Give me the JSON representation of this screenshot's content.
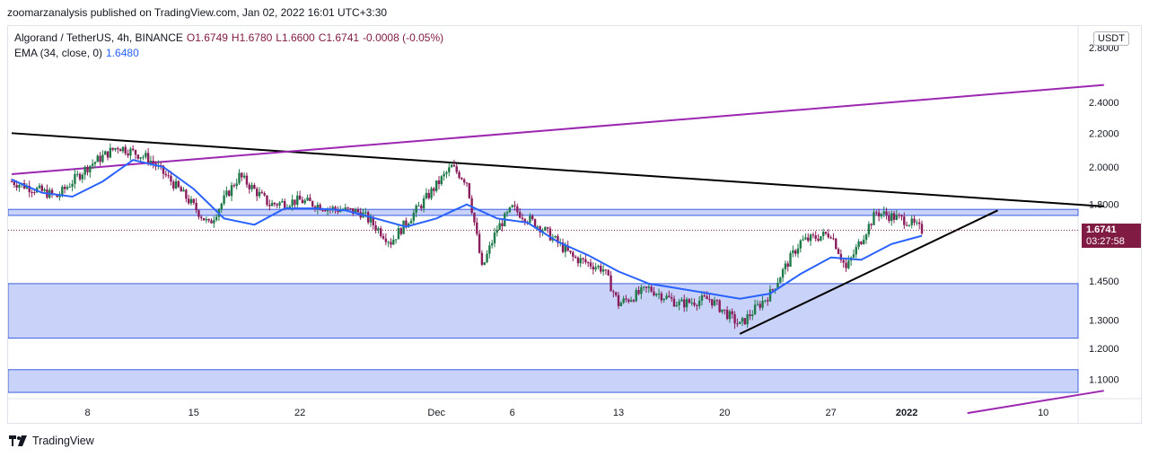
{
  "header": {
    "published": "zoomarzanalysis published on TradingView.com, Jan 02, 2022 16:01 UTC+3:30"
  },
  "legend": {
    "symbol": "Algorand / TetherUS, 4h, BINANCE",
    "open": "O1.6749",
    "high": "H1.6780",
    "low": "L1.6600",
    "close": "C1.6741",
    "change": "-0.0008 (-0.05%)",
    "ema_label": "EMA (34, close, 0)",
    "ema_value": "1.6480"
  },
  "price_axis": {
    "currency": "USDT",
    "ticks": [
      "2.8000",
      "2.4000",
      "2.2000",
      "2.0000",
      "1.8000",
      "1.4500",
      "1.3000",
      "1.2000",
      "1.1000"
    ]
  },
  "last_price": {
    "price": "1.6741",
    "countdown": "03:27:58",
    "color": "#801c44"
  },
  "time_axis": {
    "ticks": [
      "8",
      "15",
      "22",
      "Dec",
      "6",
      "13",
      "20",
      "27",
      "2022",
      "10"
    ]
  },
  "footer": {
    "brand": "TradingView"
  },
  "colors": {
    "bull": "#1f7a4a",
    "bear": "#8b1c5c",
    "ema": "#2962ff",
    "zone": "#bfcaf7",
    "zone_border": "#3c5ee0",
    "purple": "#9c27b0",
    "trendline": "#000000"
  },
  "chart_data": {
    "type": "candlestick",
    "symbol": "Algorand / TetherUS",
    "interval": "4h",
    "exchange": "BINANCE",
    "y_scale": "log",
    "ylim": [
      1.04,
      2.95
    ],
    "x_range": [
      "Nov 3 2021",
      "Jan 14 2022"
    ],
    "legend_position": "top-left",
    "series": [
      {
        "name": "EMA (34, close, 0)",
        "points": [
          [
            "Nov 3",
            1.93
          ],
          [
            "Nov 5",
            1.86
          ],
          [
            "Nov 7",
            1.84
          ],
          [
            "Nov 9",
            1.92
          ],
          [
            "Nov 11",
            2.04
          ],
          [
            "Nov 13",
            2.0
          ],
          [
            "Nov 15",
            1.88
          ],
          [
            "Nov 17",
            1.73
          ],
          [
            "Nov 19",
            1.7
          ],
          [
            "Nov 21",
            1.78
          ],
          [
            "Nov 23",
            1.78
          ],
          [
            "Nov 25",
            1.77
          ],
          [
            "Nov 27",
            1.73
          ],
          [
            "Nov 29",
            1.69
          ],
          [
            "Dec 1",
            1.73
          ],
          [
            "Dec 3",
            1.8
          ],
          [
            "Dec 5",
            1.73
          ],
          [
            "Dec 7",
            1.71
          ],
          [
            "Dec 9",
            1.62
          ],
          [
            "Dec 11",
            1.56
          ],
          [
            "Dec 13",
            1.49
          ],
          [
            "Dec 15",
            1.44
          ],
          [
            "Dec 17",
            1.42
          ],
          [
            "Dec 19",
            1.4
          ],
          [
            "Dec 21",
            1.38
          ],
          [
            "Dec 23",
            1.4
          ],
          [
            "Dec 25",
            1.48
          ],
          [
            "Dec 27",
            1.55
          ],
          [
            "Dec 29",
            1.54
          ],
          [
            "Dec 31",
            1.61
          ],
          [
            "Jan 2",
            1.648
          ]
        ]
      }
    ],
    "support_resistance_zones": [
      {
        "from": 1.745,
        "to": 1.775
      },
      {
        "from": 1.235,
        "to": 1.44
      },
      {
        "from": 1.06,
        "to": 1.13
      }
    ],
    "trendlines": [
      {
        "color": "black",
        "from": [
          "Nov 3",
          2.2
        ],
        "to": [
          "Jan 14",
          1.79
        ]
      },
      {
        "color": "black",
        "from": [
          "Dec 21",
          1.25
        ],
        "to": [
          "Jan 7",
          1.77
        ]
      },
      {
        "color": "purple",
        "from": [
          "Nov 3",
          1.96
        ],
        "to": [
          "Jan 14",
          2.52
        ]
      },
      {
        "color": "purple",
        "from": [
          "Jan 5",
          1.0
        ],
        "to": [
          "Jan 14",
          1.065
        ]
      }
    ],
    "last_price": 1.6741,
    "anchor_points": [
      [
        "Nov 3",
        1.92
      ],
      [
        "Nov 6",
        1.84
      ],
      [
        "Nov 8",
        2.0
      ],
      [
        "Nov 10",
        2.12
      ],
      [
        "Nov 12",
        2.05
      ],
      [
        "Nov 14",
        1.88
      ],
      [
        "Nov 16",
        1.7
      ],
      [
        "Nov 18",
        1.95
      ],
      [
        "Nov 20",
        1.8
      ],
      [
        "Nov 22",
        1.82
      ],
      [
        "Nov 24",
        1.78
      ],
      [
        "Nov 26",
        1.76
      ],
      [
        "Nov 28",
        1.62
      ],
      [
        "Nov 30",
        1.8
      ],
      [
        "Dec 2",
        2.0
      ],
      [
        "Dec 3",
        1.92
      ],
      [
        "Dec 4",
        1.5
      ],
      [
        "Dec 5",
        1.68
      ],
      [
        "Dec 6",
        1.78
      ],
      [
        "Dec 8",
        1.68
      ],
      [
        "Dec 10",
        1.55
      ],
      [
        "Dec 12",
        1.5
      ],
      [
        "Dec 13",
        1.36
      ],
      [
        "Dec 15",
        1.42
      ],
      [
        "Dec 17",
        1.36
      ],
      [
        "Dec 19",
        1.38
      ],
      [
        "Dec 21",
        1.28
      ],
      [
        "Dec 23",
        1.4
      ],
      [
        "Dec 25",
        1.62
      ],
      [
        "Dec 27",
        1.66
      ],
      [
        "Dec 28",
        1.5
      ],
      [
        "Dec 30",
        1.76
      ],
      [
        "Jan 1",
        1.72
      ],
      [
        "Jan 2",
        1.674
      ]
    ]
  }
}
